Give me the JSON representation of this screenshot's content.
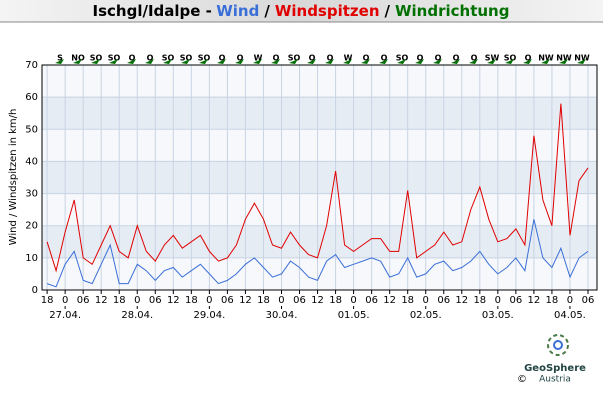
{
  "chart_data": {
    "type": "line",
    "title_prefix": "Ischgl/Idalpe -",
    "title_separator": "/",
    "direction_title": "Windrichtung",
    "direction_color": "#007000",
    "y_label": "Wind / Windspitzen in km/h",
    "x": [
      -6,
      -3,
      0,
      3,
      6,
      9,
      12,
      15,
      18,
      21,
      24,
      27,
      30,
      33,
      36,
      39,
      42,
      45,
      48,
      51,
      54,
      57,
      60,
      63,
      66,
      69,
      72,
      75,
      78,
      81,
      84,
      87,
      90,
      93,
      96,
      99,
      102,
      105,
      108,
      111,
      114,
      117,
      120,
      123,
      126,
      129,
      132,
      135,
      138,
      141,
      144,
      147,
      150,
      153,
      156,
      159,
      162,
      165,
      168,
      171,
      174
    ],
    "series": [
      {
        "name": "Wind",
        "color": "#3a6fd8",
        "values": [
          2,
          1,
          8,
          12,
          3,
          2,
          8,
          14,
          2,
          2,
          8,
          6,
          3,
          6,
          7,
          4,
          6,
          8,
          5,
          2,
          3,
          5,
          8,
          10,
          7,
          4,
          5,
          9,
          7,
          4,
          3,
          9,
          11,
          7,
          8,
          9,
          10,
          9,
          4,
          5,
          10,
          4,
          5,
          8,
          9,
          6,
          7,
          9,
          12,
          8,
          5,
          7,
          10,
          6,
          22,
          10,
          7,
          13,
          4,
          10,
          12
        ]
      },
      {
        "name": "Windspitzen",
        "color": "#e00000",
        "values": [
          15,
          6,
          18,
          28,
          10,
          8,
          14,
          20,
          12,
          10,
          20,
          12,
          9,
          14,
          17,
          13,
          15,
          17,
          12,
          9,
          10,
          14,
          22,
          27,
          22,
          14,
          13,
          18,
          14,
          11,
          10,
          20,
          37,
          14,
          12,
          14,
          16,
          16,
          12,
          12,
          31,
          10,
          12,
          14,
          18,
          14,
          15,
          25,
          32,
          22,
          15,
          16,
          19,
          14,
          48,
          28,
          20,
          58,
          17,
          34,
          38
        ]
      }
    ],
    "direction_labels": [
      "S",
      "NO",
      "SO",
      "SO",
      "O",
      "O",
      "SO",
      "SO",
      "SO",
      "O",
      "O",
      "W",
      "O",
      "SO",
      "O",
      "O",
      "W",
      "O",
      "O",
      "SO",
      "O",
      "O",
      "O",
      "O",
      "SW",
      "SO",
      "O",
      "NW",
      "NW",
      "NW"
    ],
    "xlim": [
      -7.7,
      177
    ],
    "ylim": [
      0,
      70
    ],
    "yticks": [
      0,
      10,
      20,
      30,
      40,
      50,
      60,
      70
    ],
    "xticks": [
      {
        "value": -6,
        "label": "18"
      },
      {
        "value": 0,
        "label": "0"
      },
      {
        "value": 6,
        "label": "06"
      },
      {
        "value": 12,
        "label": "12"
      },
      {
        "value": 18,
        "label": "18"
      },
      {
        "value": 24,
        "label": "0"
      },
      {
        "value": 30,
        "label": "06"
      },
      {
        "value": 36,
        "label": "12"
      },
      {
        "value": 42,
        "label": "18"
      },
      {
        "value": 48,
        "label": "0"
      },
      {
        "value": 54,
        "label": "06"
      },
      {
        "value": 60,
        "label": "12"
      },
      {
        "value": 66,
        "label": "18"
      },
      {
        "value": 72,
        "label": "0"
      },
      {
        "value": 78,
        "label": "06"
      },
      {
        "value": 84,
        "label": "12"
      },
      {
        "value": 90,
        "label": "18"
      },
      {
        "value": 96,
        "label": "0"
      },
      {
        "value": 102,
        "label": "06"
      },
      {
        "value": 108,
        "label": "12"
      },
      {
        "value": 114,
        "label": "18"
      },
      {
        "value": 120,
        "label": "0"
      },
      {
        "value": 126,
        "label": "06"
      },
      {
        "value": 132,
        "label": "12"
      },
      {
        "value": 138,
        "label": "18"
      },
      {
        "value": 144,
        "label": "0"
      },
      {
        "value": 150,
        "label": "06"
      },
      {
        "value": 156,
        "label": "12"
      },
      {
        "value": 162,
        "label": "18"
      },
      {
        "value": 168,
        "label": "0"
      },
      {
        "value": 174,
        "label": "06"
      }
    ],
    "date_ticks": [
      {
        "value": 0,
        "label": "27.04."
      },
      {
        "value": 24,
        "label": "28.04."
      },
      {
        "value": 48,
        "label": "29.04."
      },
      {
        "value": 72,
        "label": "30.04."
      },
      {
        "value": 96,
        "label": "01.05."
      },
      {
        "value": 120,
        "label": "02.05."
      },
      {
        "value": 144,
        "label": "03.05."
      },
      {
        "value": 168,
        "label": "04.05."
      }
    ],
    "grid": true,
    "logo_name": "GeoSphere",
    "logo_sub": "Austria",
    "copyright": "©"
  }
}
